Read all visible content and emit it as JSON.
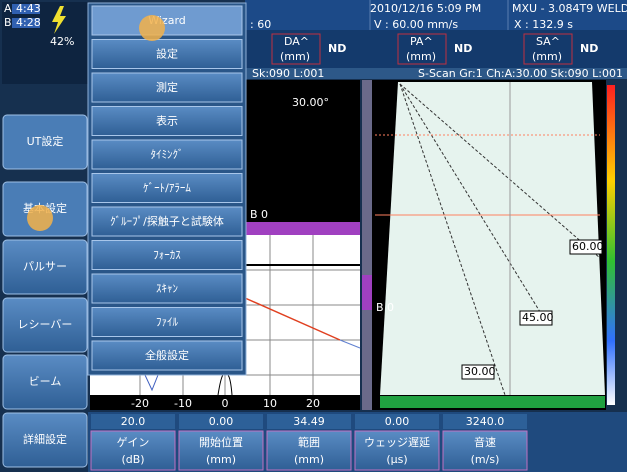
{
  "status": {
    "a_time": "4:43",
    "b_time": "4:28",
    "battery": "42%"
  },
  "header": {
    "datetime": "2010/12/16 5:09 PM",
    "setup": "MXU - 3.084T9 WELD",
    "field1": ": 60",
    "velocity": "V : 60.00 mm/s",
    "x_value": "X : 132.9 s"
  },
  "readings": [
    {
      "label": "DA^",
      "unit": "(mm)",
      "value": "ND"
    },
    {
      "label": "PA^",
      "unit": "(mm)",
      "value": "ND"
    },
    {
      "label": "SA^",
      "unit": "(mm)",
      "value": "ND"
    }
  ],
  "info": {
    "ascan": "Sk:090 L:001",
    "sscan": "S-Scan Gr:1 Ch:A:30.00 Sk:090 L:001"
  },
  "side_menu": [
    "UT設定",
    "基本設定",
    "パルサー",
    "レシーバー",
    "ビーム",
    "詳細設定"
  ],
  "dropdown": [
    "Wizard",
    "設定",
    "測定",
    "表示",
    "ﾀｲﾐﾝｸﾞ",
    "ｹﾞｰﾄ/ｱﾗｰﾑ",
    "ｸﾞﾙｰﾌﾟ/探触子と試験体",
    "ﾌｫｰｶｽ",
    "ｽｷｬﾝ",
    "ﾌｧｲﾙ",
    "全般設定"
  ],
  "ascan": {
    "angle": "30.00°",
    "gate": "B 0",
    "x_ticks": [
      "-20",
      "-10",
      "0",
      "10",
      "20"
    ]
  },
  "sscan": {
    "gate": "B 0",
    "markers": [
      "60.00",
      "45.00",
      "30.00"
    ]
  },
  "parameters": [
    {
      "value": "20.0",
      "label": "ゲイン",
      "unit": "(dB)"
    },
    {
      "value": "0.00",
      "label": "開始位置",
      "unit": "(mm)"
    },
    {
      "value": "34.49",
      "label": "範囲",
      "unit": "(mm)"
    },
    {
      "value": "0.00",
      "label": "ウェッジ遅延",
      "unit": "(µs)"
    },
    {
      "value": "3240.0",
      "label": "音速",
      "unit": "(m/s)"
    }
  ]
}
